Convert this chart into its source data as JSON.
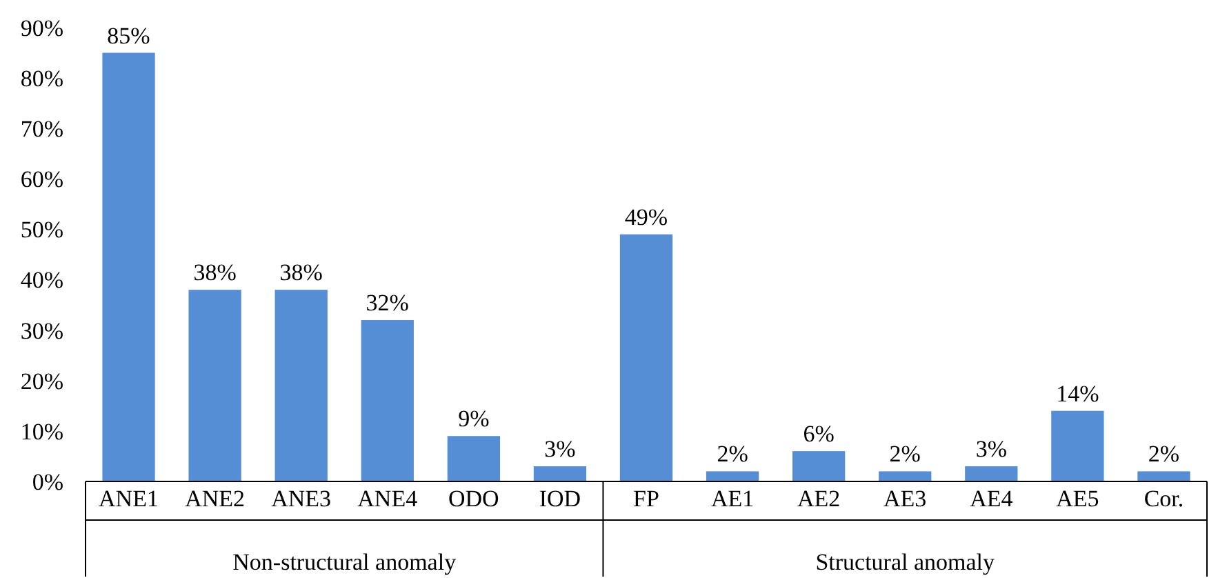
{
  "chart_data": {
    "type": "bar",
    "categories": [
      "ANE1",
      "ANE2",
      "ANE3",
      "ANE4",
      "ODO",
      "IOD",
      "FP",
      "AE1",
      "AE2",
      "AE3",
      "AE4",
      "AE5",
      "Cor."
    ],
    "values": [
      85,
      38,
      38,
      32,
      9,
      3,
      49,
      2,
      6,
      2,
      3,
      14,
      2
    ],
    "value_labels": [
      "85%",
      "38%",
      "38%",
      "32%",
      "9%",
      "3%",
      "49%",
      "2%",
      "6%",
      "2%",
      "3%",
      "14%",
      "2%"
    ],
    "color": "#558ed5",
    "ylim": [
      0,
      90
    ],
    "yticks": [
      {
        "value": 0,
        "label": "0%"
      },
      {
        "value": 10,
        "label": "10%"
      },
      {
        "value": 20,
        "label": "20%"
      },
      {
        "value": 30,
        "label": "30%"
      },
      {
        "value": 40,
        "label": "40%"
      },
      {
        "value": 50,
        "label": "50%"
      },
      {
        "value": 60,
        "label": "60%"
      },
      {
        "value": 70,
        "label": "70%"
      },
      {
        "value": 80,
        "label": "80%"
      },
      {
        "value": 90,
        "label": "90%"
      }
    ],
    "grid": false,
    "annotations": [
      "Non-structural anomaly",
      "Structural anomaly"
    ]
  }
}
